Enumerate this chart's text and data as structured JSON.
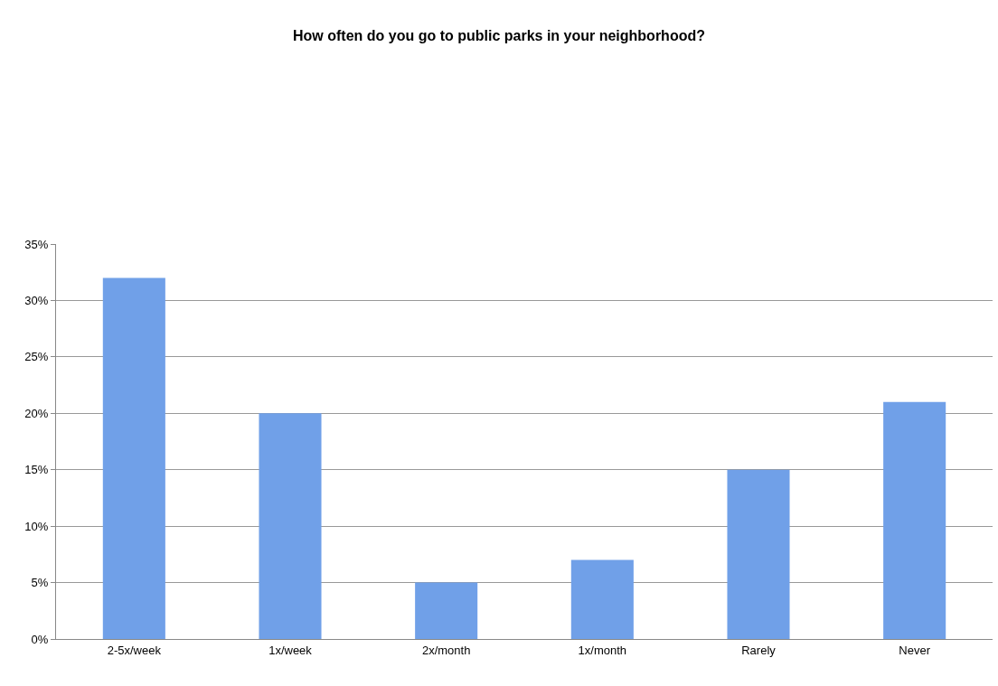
{
  "chart_data": {
    "type": "bar",
    "title": "How often do you go to public parks in your neighborhood?",
    "categories": [
      "2-5x/week",
      "1x/week",
      "2x/month",
      "1x/month",
      "Rarely",
      "Never"
    ],
    "values": [
      32,
      20,
      5,
      7,
      15,
      21
    ],
    "color": "#70a0e8",
    "ylim": [
      0,
      35
    ],
    "yticks": [
      {
        "value": 0,
        "label": "0%"
      },
      {
        "value": 5,
        "label": "5%"
      },
      {
        "value": 10,
        "label": "10%"
      },
      {
        "value": 15,
        "label": "15%"
      },
      {
        "value": 20,
        "label": "20%"
      },
      {
        "value": 25,
        "label": "25%"
      },
      {
        "value": 30,
        "label": "30%"
      },
      {
        "value": 35,
        "label": "35%"
      }
    ],
    "grid": "y",
    "legend": false
  }
}
